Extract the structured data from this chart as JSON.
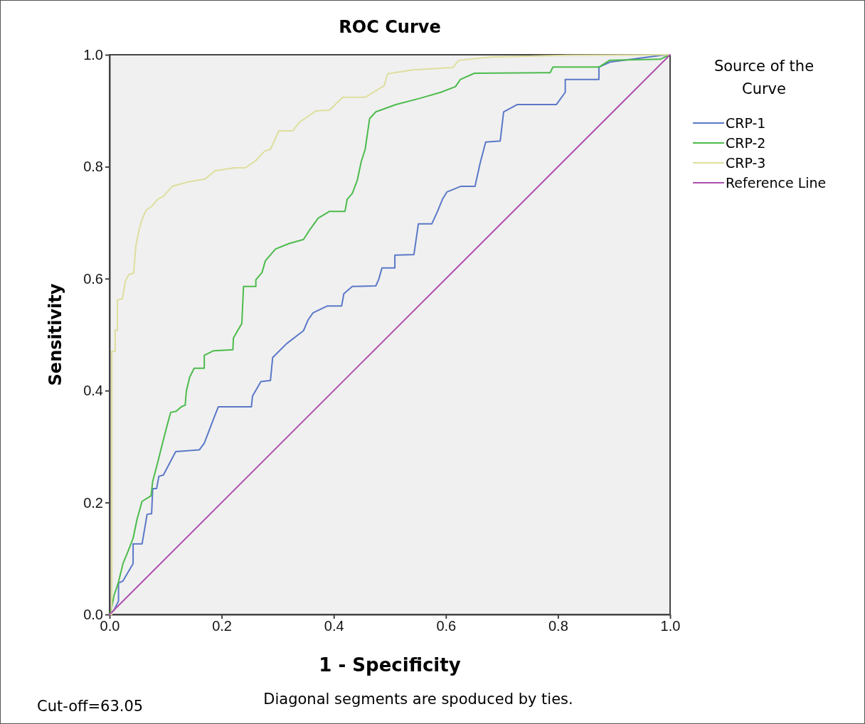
{
  "chart_data": {
    "type": "line",
    "title": "ROC Curve",
    "xlabel": "1 - Specificity",
    "ylabel": "Sensitivity",
    "legend_title": "Source of the Curve",
    "legend": "right",
    "grid": false,
    "xlim": [
      0,
      1
    ],
    "ylim": [
      0,
      1
    ],
    "xticks": [
      {
        "value": 0,
        "label": "0.0"
      },
      {
        "value": 0.2,
        "label": "0.2"
      },
      {
        "value": 0.4,
        "label": "0.4"
      },
      {
        "value": 0.6,
        "label": "0.6"
      },
      {
        "value": 0.8,
        "label": "0.8"
      },
      {
        "value": 1,
        "label": "1.0"
      }
    ],
    "yticks": [
      {
        "value": 0,
        "label": "0.0"
      },
      {
        "value": 0.2,
        "label": "0.2"
      },
      {
        "value": 0.4,
        "label": "0.4"
      },
      {
        "value": 0.6,
        "label": "0.6"
      },
      {
        "value": 0.8,
        "label": "0.8"
      },
      {
        "value": 1,
        "label": "1.0"
      }
    ],
    "series": [
      {
        "name": "CRP-1",
        "color": "#5b78c8",
        "x": [
          0,
          0.008,
          0.016,
          0.016,
          0.024,
          0.042,
          0.042,
          0.058,
          0.067,
          0.075,
          0.077,
          0.084,
          0.088,
          0.096,
          0.118,
          0.16,
          0.169,
          0.185,
          0.194,
          0.253,
          0.255,
          0.27,
          0.287,
          0.291,
          0.316,
          0.346,
          0.354,
          0.363,
          0.388,
          0.414,
          0.418,
          0.433,
          0.475,
          0.48,
          0.486,
          0.509,
          0.509,
          0.543,
          0.551,
          0.575,
          0.585,
          0.594,
          0.602,
          0.627,
          0.652,
          0.661,
          0.671,
          0.697,
          0.703,
          0.727,
          0.797,
          0.813,
          0.813,
          0.873,
          0.873,
          0.893,
          0.985,
          1
        ],
        "values": [
          0,
          0.008,
          0.024,
          0.056,
          0.06,
          0.091,
          0.126,
          0.126,
          0.179,
          0.18,
          0.225,
          0.225,
          0.247,
          0.249,
          0.291,
          0.294,
          0.306,
          0.348,
          0.371,
          0.371,
          0.39,
          0.416,
          0.418,
          0.459,
          0.484,
          0.507,
          0.526,
          0.539,
          0.551,
          0.551,
          0.573,
          0.586,
          0.587,
          0.598,
          0.619,
          0.619,
          0.642,
          0.643,
          0.698,
          0.698,
          0.72,
          0.742,
          0.755,
          0.765,
          0.765,
          0.806,
          0.844,
          0.846,
          0.898,
          0.911,
          0.911,
          0.933,
          0.956,
          0.956,
          0.978,
          0.987,
          0.999,
          1
        ]
      },
      {
        "name": "CRP-2",
        "color": "#4cbb4c",
        "x": [
          0,
          0.003,
          0.008,
          0.016,
          0.024,
          0.033,
          0.042,
          0.049,
          0.058,
          0.074,
          0.077,
          0.086,
          0.094,
          0.103,
          0.109,
          0.119,
          0.128,
          0.135,
          0.137,
          0.143,
          0.151,
          0.169,
          0.169,
          0.185,
          0.22,
          0.221,
          0.236,
          0.239,
          0.261,
          0.261,
          0.272,
          0.278,
          0.296,
          0.321,
          0.346,
          0.357,
          0.372,
          0.392,
          0.42,
          0.424,
          0.433,
          0.442,
          0.449,
          0.456,
          0.464,
          0.475,
          0.511,
          0.553,
          0.591,
          0.617,
          0.626,
          0.651,
          0.786,
          0.791,
          0.873,
          0.892,
          0.982,
          1
        ],
        "values": [
          0,
          0.008,
          0.034,
          0.058,
          0.091,
          0.113,
          0.136,
          0.17,
          0.202,
          0.212,
          0.238,
          0.272,
          0.304,
          0.339,
          0.361,
          0.363,
          0.371,
          0.374,
          0.399,
          0.424,
          0.44,
          0.44,
          0.463,
          0.471,
          0.473,
          0.494,
          0.52,
          0.586,
          0.586,
          0.598,
          0.611,
          0.632,
          0.653,
          0.663,
          0.67,
          0.687,
          0.708,
          0.72,
          0.72,
          0.742,
          0.752,
          0.776,
          0.809,
          0.831,
          0.886,
          0.898,
          0.911,
          0.922,
          0.933,
          0.943,
          0.956,
          0.967,
          0.968,
          0.978,
          0.978,
          0.99,
          0.992,
          1
        ]
      },
      {
        "name": "CRP-3",
        "color": "#dede9e",
        "x": [
          0,
          0.004,
          0.004,
          0.01,
          0.01,
          0.014,
          0.014,
          0.023,
          0.028,
          0.034,
          0.043,
          0.047,
          0.053,
          0.058,
          0.065,
          0.075,
          0.086,
          0.096,
          0.112,
          0.141,
          0.17,
          0.189,
          0.223,
          0.242,
          0.261,
          0.277,
          0.287,
          0.302,
          0.327,
          0.338,
          0.369,
          0.392,
          0.416,
          0.456,
          0.49,
          0.496,
          0.541,
          0.612,
          0.623,
          0.68,
          0.82,
          1
        ],
        "values": [
          0,
          0,
          0.47,
          0.47,
          0.508,
          0.508,
          0.562,
          0.564,
          0.595,
          0.607,
          0.61,
          0.659,
          0.689,
          0.706,
          0.722,
          0.729,
          0.742,
          0.747,
          0.765,
          0.773,
          0.778,
          0.793,
          0.798,
          0.798,
          0.811,
          0.828,
          0.831,
          0.864,
          0.864,
          0.879,
          0.9,
          0.901,
          0.924,
          0.924,
          0.945,
          0.966,
          0.973,
          0.977,
          0.99,
          0.996,
          0.999,
          1
        ]
      },
      {
        "name": "Reference Line",
        "color": "#b04fb0",
        "x": [
          0,
          1
        ],
        "values": [
          0,
          1
        ]
      }
    ],
    "annotations": [
      "Cut-off=63.05",
      "Diagonal segments are spoduced by ties."
    ]
  }
}
